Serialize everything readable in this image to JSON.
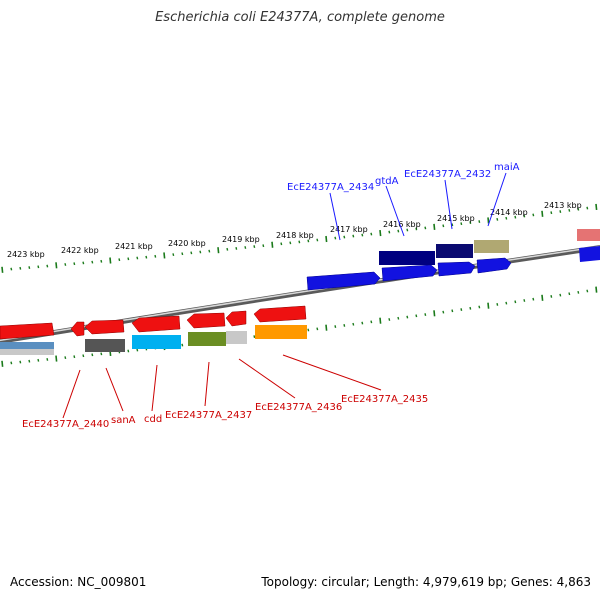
{
  "title": "Escherichia coli E24377A, complete genome",
  "footer": {
    "accession": "Accession: NC_009801",
    "stats": "Topology: circular; Length: 4,979,619 bp; Genes: 4,863"
  },
  "colors": {
    "forward_label": "#1a1aff",
    "reverse_label": "#cc0000",
    "tick": "#1a7a1a",
    "backbone": "#888888"
  },
  "kbp_labels": [
    "2423 kbp",
    "2422 kbp",
    "2421 kbp",
    "2420 kbp",
    "2419 kbp",
    "2418 kbp",
    "2417 kbp",
    "2416 kbp",
    "2415 kbp",
    "2414 kbp",
    "2413 kbp"
  ],
  "gene_labels_top": [
    "EcE24377A_2434",
    "gtdA",
    "EcE24377A_2432",
    "maiA"
  ],
  "gene_labels_bottom": [
    "EcE24377A_2440",
    "sanA",
    "cdd",
    "EcE24377A_2437",
    "EcE24377A_2436",
    "EcE24377A_2435"
  ]
}
